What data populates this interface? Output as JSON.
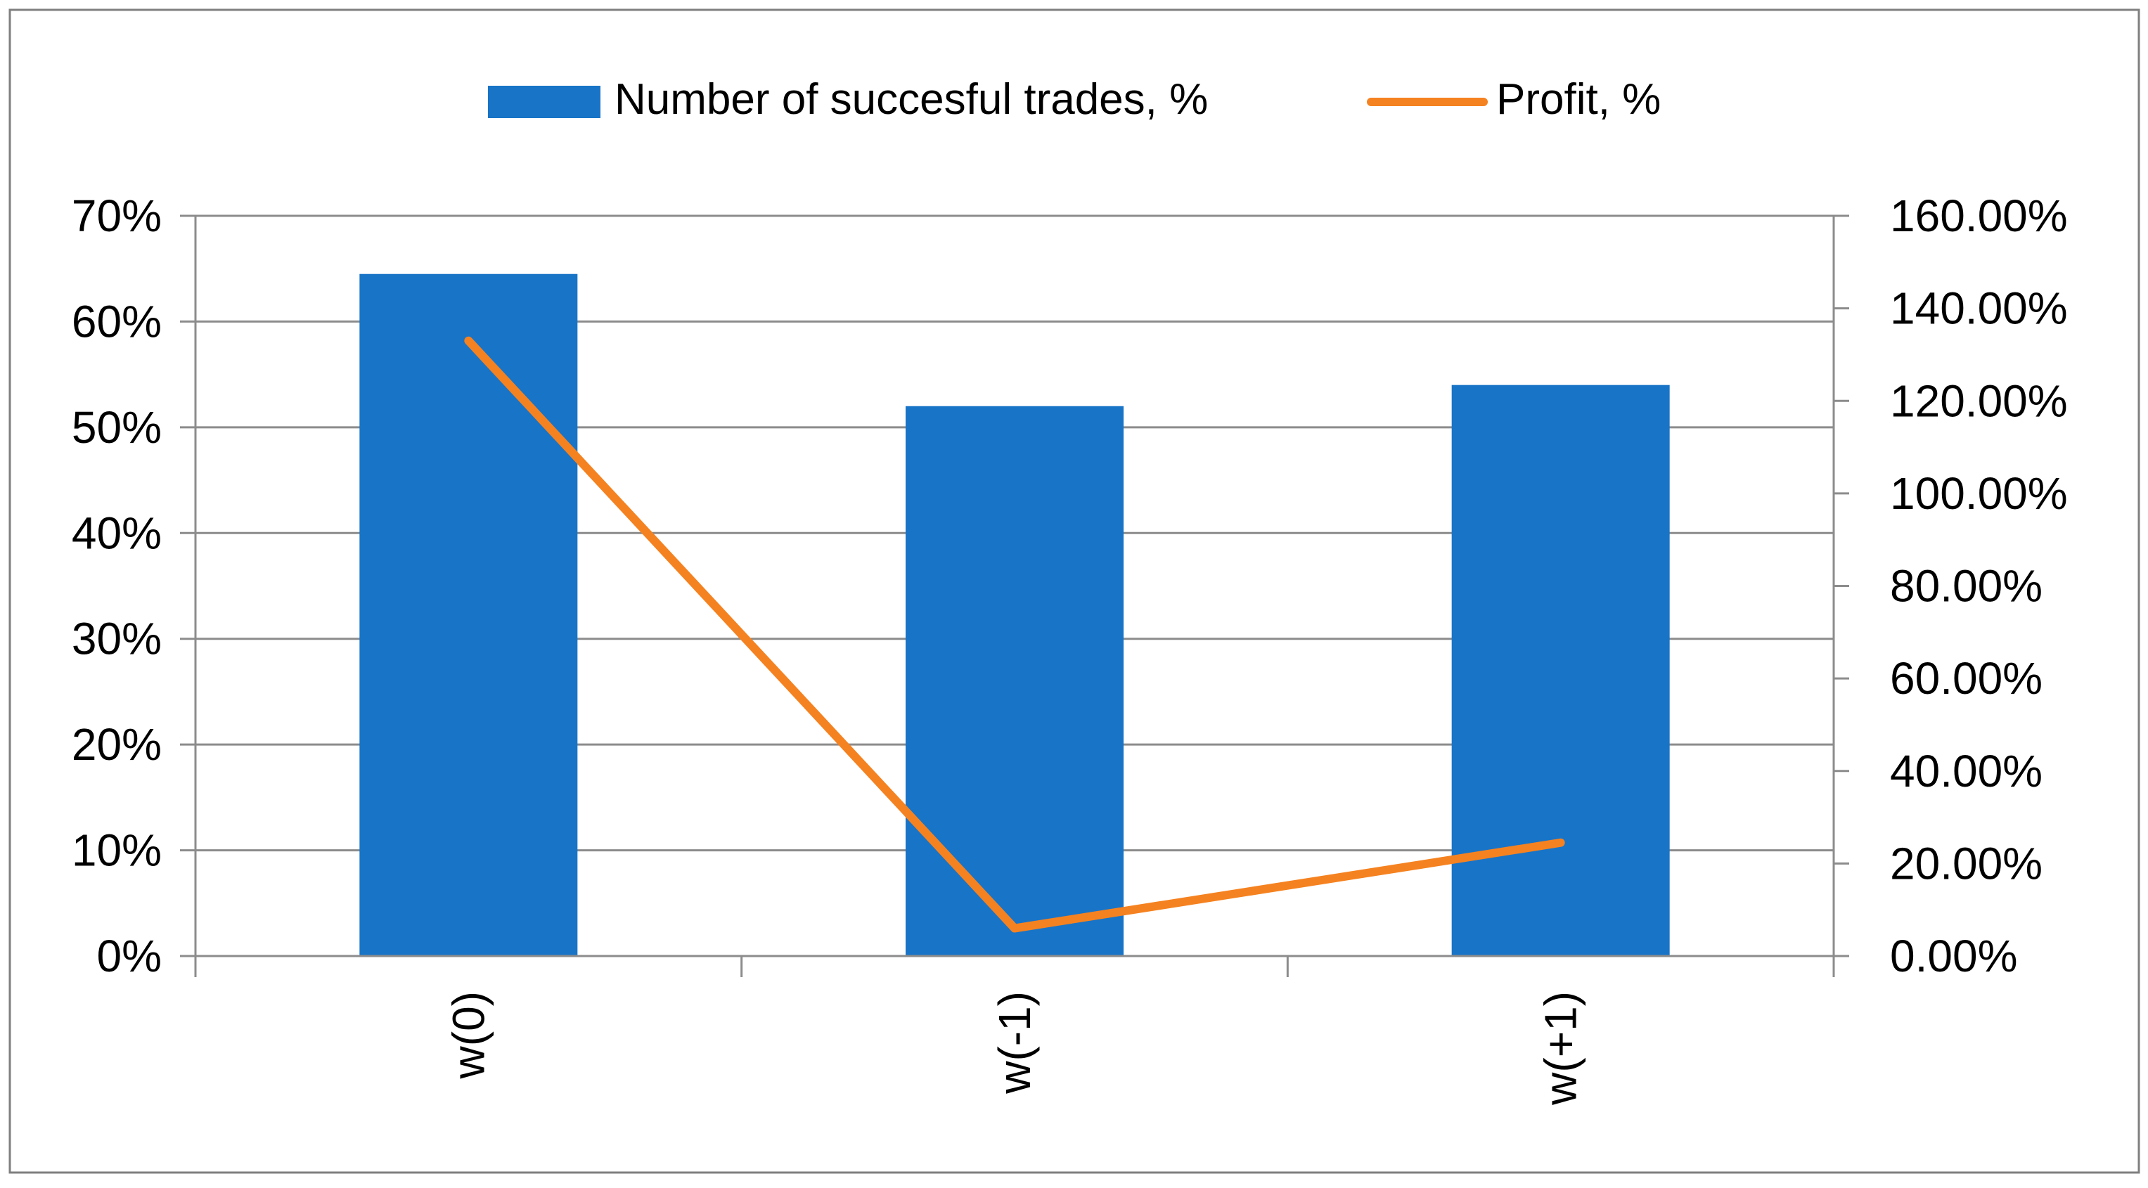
{
  "chart_data": {
    "type": "bar",
    "categories": [
      "w(0)",
      "w(-1)",
      "w(+1)"
    ],
    "series": [
      {
        "name": "Number of succesful trades, %",
        "type": "bar",
        "axis": "left",
        "values": [
          64.5,
          52.0,
          54.0
        ],
        "color": "#1874C7"
      },
      {
        "name": "Profit, %",
        "type": "line",
        "axis": "right",
        "values": [
          133.0,
          6.0,
          24.5
        ],
        "color": "#F58220"
      }
    ],
    "left_axis": {
      "ylim": [
        0,
        70
      ],
      "ticks": [
        0,
        10,
        20,
        30,
        40,
        50,
        60,
        70
      ],
      "tick_labels": [
        "0%",
        "10%",
        "20%",
        "30%",
        "40%",
        "50%",
        "60%",
        "70%"
      ]
    },
    "right_axis": {
      "ylim": [
        0,
        160
      ],
      "ticks": [
        0,
        20,
        40,
        60,
        80,
        100,
        120,
        140,
        160
      ],
      "tick_labels": [
        "0.00%",
        "20.00%",
        "40.00%",
        "60.00%",
        "80.00%",
        "100.00%",
        "120.00%",
        "140.00%",
        "160.00%"
      ]
    },
    "grid": true,
    "legend": "top-center",
    "title": "",
    "xlabel": "",
    "ylabel": ""
  },
  "colors": {
    "border": "#7F7F7F",
    "grid": "#8C8C8C",
    "axis": "#8C8C8C"
  }
}
